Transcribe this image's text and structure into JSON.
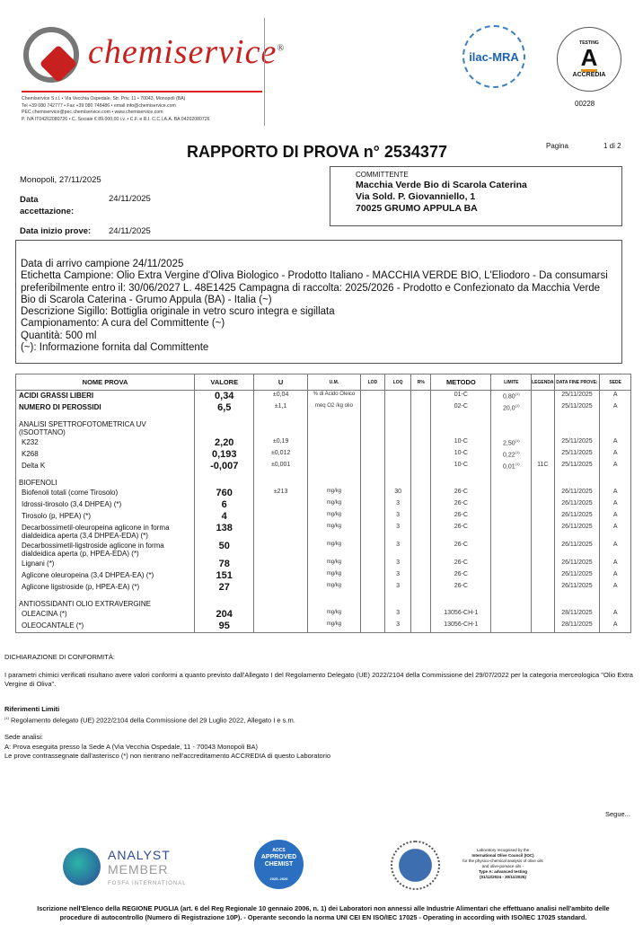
{
  "header": {
    "brand": "chemiservice",
    "contacts": [
      "Chemiservice S.r.l. • Via Vecchia Ospedale, Str. Priv. 11 • 70043, Monopoli (BA)",
      "Tel +39 080 742777 • Fax +39 080 748486 • email info@chemiservice.com",
      "PEC chemiservice@pec.chemiservice.com • www.chemiservice.com",
      "P. IVA IT04262080726 • C. Sociale € 89.000,00 i.v. • C.F. e R.I. C.C.I.A.A. BA 04262080726"
    ],
    "ilac": "ilac-MRA",
    "accredia_top": "TESTING",
    "accredia": "ACCREDIA",
    "accredia_number": "00228"
  },
  "report": {
    "title": "RAPPORTO DI PROVA  n° 2534377",
    "page_label": "Pagina",
    "page_value": "1 di 2",
    "place_date": "Monopoli, 27/11/2025",
    "acceptance_label": "Data accettazione:",
    "acceptance_date": "24/11/2025",
    "start_label": "Data inizio prove:",
    "start_date": "24/11/2025"
  },
  "client": {
    "label": "COMMITTENTE",
    "name": "Macchia Verde Bio di Scarola Caterina",
    "address": "Via Sold. P. Giovanniello, 1",
    "city": "70025 GRUMO APPULA BA"
  },
  "sample": {
    "lines": [
      "Data di arrivo campione 24/11/2025",
      "Etichetta Campione: Olio Extra Vergine d'Oliva Biologico - Prodotto Italiano - MACCHIA VERDE BIO, L'Eliodoro - Da consumarsi preferibilmente entro il: 30/06/2027 L. 48E1425 Campagna di raccolta: 2025/2026 - Prodotto e Confezionato da Macchia Verde Bio di Scarola Caterina - Grumo Appula (BA) - Italia (~)",
      "Descrizione Sigillo: Bottiglia originale in vetro scuro integra e sigillata",
      "Campionamento: A cura del Committente (~)",
      "Quantità: 500 ml",
      "(~): Informazione fornita dal Committente"
    ]
  },
  "table": {
    "headers": [
      "NOME PROVA",
      "VALORE",
      "U",
      "U.M.",
      "LOD",
      "LOQ",
      "R%",
      "METODO",
      "LIMITE",
      "LEGENDA",
      "DATA FINE PROVE:",
      "SEDE"
    ],
    "rows": [
      {
        "name": "ACIDI GRASSI LIBERI",
        "type": "h",
        "value": "0,34",
        "u": "±0,04",
        "um": "% di Acido Oleico",
        "loq": "",
        "method": "01-C",
        "limit": "0,80",
        "legend": "",
        "date": "25/11/2025",
        "site": "A"
      },
      {
        "name": "NUMERO DI PEROSSIDI",
        "type": "h",
        "value": "6,5",
        "u": "±1,1",
        "um": "meq O2 /kg olio",
        "loq": "",
        "method": "02-C",
        "limit": "20,0",
        "legend": "",
        "date": "25/11/2025",
        "site": "A"
      },
      {
        "name": "ANALISI SPETTROFOTOMETRICA UV (ISOOTTANO)",
        "type": "g"
      },
      {
        "name": "K232",
        "type": "s",
        "value": "2,20",
        "u": "±0,19",
        "um": "",
        "loq": "",
        "method": "10-C",
        "limit": "2,50",
        "legend": "",
        "date": "25/11/2025",
        "site": "A"
      },
      {
        "name": "K268",
        "type": "s",
        "value": "0,193",
        "u": "±0,012",
        "um": "",
        "loq": "",
        "method": "10-C",
        "limit": "0,22",
        "legend": "",
        "date": "25/11/2025",
        "site": "A"
      },
      {
        "name": "Delta K",
        "type": "s",
        "value": "-0,007",
        "u": "±0,001",
        "um": "",
        "loq": "",
        "method": "10-C",
        "limit": "0,01",
        "legend": "11C",
        "date": "25/11/2025",
        "site": "A"
      },
      {
        "name": "BIOFENOLI",
        "type": "g"
      },
      {
        "name": "Biofenoli totali (come Tirosolo)",
        "type": "s",
        "value": "760",
        "u": "±213",
        "um": "mg/kg",
        "loq": "30",
        "method": "26-C",
        "limit": "",
        "legend": "",
        "date": "26/11/2025",
        "site": "A"
      },
      {
        "name": "Idrossi-tirosolo (3,4 DHPEA) (*)",
        "type": "s",
        "value": "6",
        "u": "",
        "um": "mg/kg",
        "loq": "3",
        "method": "26-C",
        "limit": "",
        "legend": "",
        "date": "26/11/2025",
        "site": "A"
      },
      {
        "name": "Tirosolo (p, HPEA) (*)",
        "type": "s",
        "value": "4",
        "u": "",
        "um": "mg/kg",
        "loq": "3",
        "method": "26-C",
        "limit": "",
        "legend": "",
        "date": "26/11/2025",
        "site": "A"
      },
      {
        "name": "Decarbossimetil-oleuropeina aglicone in forma dialdeidica aperta (3,4 DHPEA-EDA) (*)",
        "type": "s",
        "value": "138",
        "u": "",
        "um": "mg/kg",
        "loq": "3",
        "method": "26-C",
        "limit": "",
        "legend": "",
        "date": "26/11/2025",
        "site": "A"
      },
      {
        "name": "Decarbossimetil-ligstroside aglicone in forma dialdeidica aperta (p, HPEA-EDA) (*)",
        "type": "s",
        "value": "50",
        "u": "",
        "um": "mg/kg",
        "loq": "3",
        "method": "26-C",
        "limit": "",
        "legend": "",
        "date": "26/11/2025",
        "site": "A"
      },
      {
        "name": "Lignani (*)",
        "type": "s",
        "value": "78",
        "u": "",
        "um": "mg/kg",
        "loq": "3",
        "method": "26-C",
        "limit": "",
        "legend": "",
        "date": "26/11/2025",
        "site": "A"
      },
      {
        "name": "Aglicone oleuropeina (3,4 DHPEA-EA) (*)",
        "type": "s",
        "value": "151",
        "u": "",
        "um": "mg/kg",
        "loq": "3",
        "method": "26-C",
        "limit": "",
        "legend": "",
        "date": "26/11/2025",
        "site": "A"
      },
      {
        "name": "Aglicone ligstroside (p, HPEA-EA) (*)",
        "type": "s",
        "value": "27",
        "u": "",
        "um": "mg/kg",
        "loq": "3",
        "method": "26-C",
        "limit": "",
        "legend": "",
        "date": "26/11/2025",
        "site": "A"
      },
      {
        "name": "ANTIOSSIDANTI OLIO EXTRAVERGINE",
        "type": "g"
      },
      {
        "name": "OLEACINA (*)",
        "type": "s",
        "value": "204",
        "u": "",
        "um": "mg/kg",
        "loq": "3",
        "method": "13056-CH-1",
        "limit": "",
        "legend": "",
        "date": "28/11/2025",
        "site": "A"
      },
      {
        "name": "OLEOCANTALE (*)",
        "type": "s",
        "value": "95",
        "u": "",
        "um": "mg/kg",
        "loq": "3",
        "method": "13056-CH-1",
        "limit": "",
        "legend": "",
        "date": "28/11/2025",
        "site": "A"
      }
    ]
  },
  "conformity": {
    "title": "DICHIARAZIONE DI CONFORMITÀ:",
    "text": "I parametri chimici verificati risultano avere valori conformi a quanto previsto dall'Allegato I del Regolamento Delegato (UE) 2022/2104 della Commissione del 29/07/2022 per la categoria merceologica \"Olio Extra Vergine di Oliva\"."
  },
  "limits": {
    "title": "Riferimenti Limiti",
    "text": "Regolamento delegato (UE) 2022/2104 della Commissione del 29 Luglio 2022, Allegato I e s.m."
  },
  "sites": {
    "title": "Sede analisi:",
    "line1": "A: Prova eseguita presso la Sede A (Via Vecchia Ospedale, 11 - 70043 Monopoli BA)",
    "line2": "Le prove contrassegnate dall'asterisco (*) non rientrano nell'accreditamento ACCREDIA di questo Laboratorio"
  },
  "continue": "Segue...",
  "footer": {
    "analyst": [
      "ANALYST",
      "MEMBER",
      "FOSFA INTERNATIONAL"
    ],
    "aocs": [
      "AOCS",
      "APPROVED",
      "CHEMIST",
      "2025–2026"
    ],
    "ioc": [
      "Laboratory recognised by the",
      "International Olive Council (IOC)",
      "for the physico-chemical analysis of olive oils",
      "and olive-pomace oils -",
      "Type A: advanced testing",
      "(01/12/2024 - 30/11/2025)"
    ],
    "text": "Iscrizione nell'Elenco della REGIONE PUGLIA (art. 6 del Reg Regionale 10 gennaio 2006, n. 1) dei Laboratori non annessi alle Industrie Alimentari che effettuano analisi nell'ambito delle procedure di autocontrollo (Numero di Registrazione 10P). - Operante secondo la norma UNI CEI EN ISO/IEC 17025 - Operating in according with ISO/IEC 17025 standard."
  },
  "colors": {
    "brand": "#c8201f",
    "ilac": "#1e63b0",
    "aocs": "#2a6fc0",
    "analyst": "#2b4a9a"
  }
}
